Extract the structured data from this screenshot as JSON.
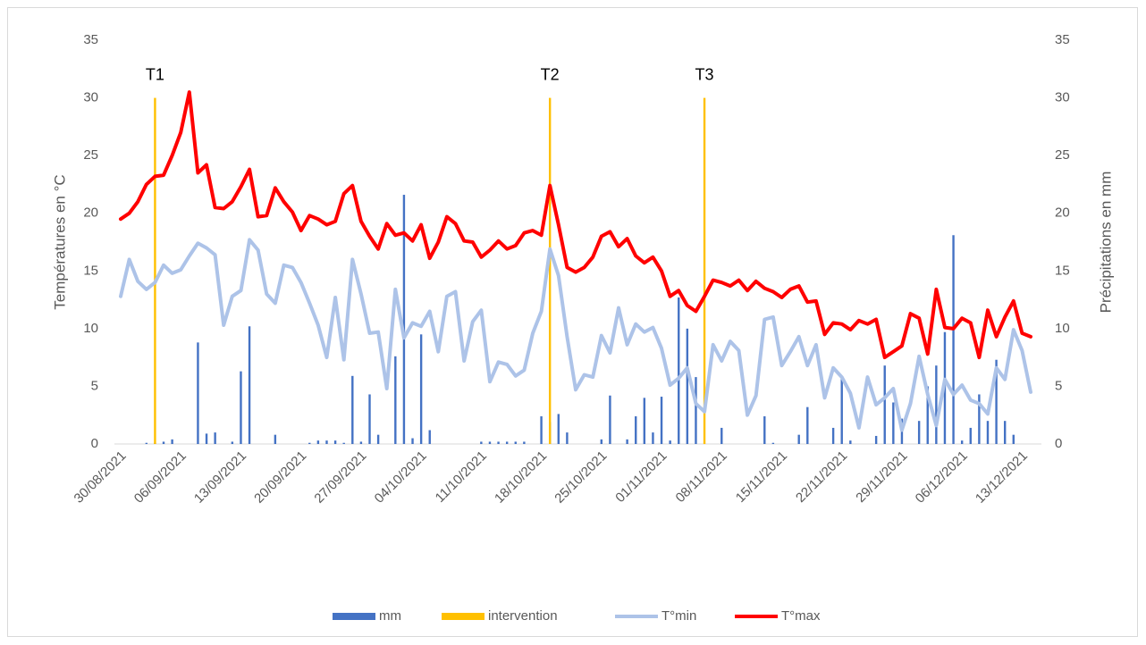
{
  "chart_data": {
    "type": "combo",
    "categories": [
      "30/08/2021",
      null,
      null,
      null,
      null,
      null,
      null,
      "06/09/2021",
      null,
      null,
      null,
      null,
      null,
      null,
      "13/09/2021",
      null,
      null,
      null,
      null,
      null,
      null,
      "20/09/2021",
      null,
      null,
      null,
      null,
      null,
      null,
      "27/09/2021",
      null,
      null,
      null,
      null,
      null,
      null,
      "04/10/2021",
      null,
      null,
      null,
      null,
      null,
      null,
      "11/10/2021",
      null,
      null,
      null,
      null,
      null,
      null,
      "18/10/2021",
      null,
      null,
      null,
      null,
      null,
      null,
      "25/10/2021",
      null,
      null,
      null,
      null,
      null,
      null,
      "01/11/2021",
      null,
      null,
      null,
      null,
      null,
      null,
      "08/11/2021",
      null,
      null,
      null,
      null,
      null,
      null,
      "15/11/2021",
      null,
      null,
      null,
      null,
      null,
      null,
      "22/11/2021",
      null,
      null,
      null,
      null,
      null,
      null,
      "29/11/2021",
      null,
      null,
      null,
      null,
      null,
      null,
      "06/12/2021",
      null,
      null,
      null,
      null,
      null,
      null,
      "13/12/2021",
      null
    ],
    "ylabel": "Températures en °C",
    "y2label": "Précipitations en mm",
    "ylim": [
      0,
      35
    ],
    "yticks": [
      0,
      5,
      10,
      15,
      20,
      25,
      30,
      35
    ],
    "y2lim": [
      0,
      35
    ],
    "y2ticks": [
      0,
      5,
      10,
      15,
      20,
      25,
      30,
      35
    ],
    "grid": false,
    "legend": "bottom",
    "annotations": [
      "T1",
      "T2",
      "T3"
    ],
    "series": [
      {
        "name": "mm",
        "type": "bar",
        "axis": "y2",
        "color": "#4472c4",
        "values": [
          0,
          0,
          0,
          0.1,
          0.1,
          0.2,
          0.4,
          0,
          0,
          8.8,
          0.9,
          1,
          0,
          0.2,
          6.3,
          10.2,
          0,
          0,
          0.8,
          0,
          0,
          0,
          0.1,
          0.3,
          0.3,
          0.3,
          0.1,
          5.9,
          0.2,
          4.3,
          0.8,
          0,
          7.6,
          21.6,
          0.5,
          9.5,
          1.2,
          0,
          0,
          0,
          0,
          0,
          0.2,
          0.2,
          0.2,
          0.2,
          0.2,
          0.2,
          0,
          2.4,
          1.9,
          2.6,
          1,
          0,
          0,
          0,
          0.4,
          4.2,
          0,
          0.4,
          2.4,
          4,
          1,
          4.1,
          0.3,
          12.7,
          10,
          5.8,
          0,
          0,
          1.4,
          0,
          0,
          0,
          0,
          2.4,
          0.1,
          0,
          0,
          0.8,
          3.2,
          0,
          0,
          1.4,
          5.8,
          0.3,
          0,
          0,
          0.7,
          6.8,
          3.6,
          2.2,
          0,
          2,
          5,
          6.8,
          9.7,
          18.1,
          0.3,
          1.4,
          4.3,
          2,
          7.3,
          2,
          0.8,
          0,
          0
        ]
      },
      {
        "name": "intervention",
        "type": "bar",
        "color": "#ffc000",
        "values": [
          null,
          null,
          null,
          null,
          30,
          null,
          null,
          null,
          null,
          null,
          null,
          null,
          null,
          null,
          null,
          null,
          null,
          null,
          null,
          null,
          null,
          null,
          null,
          null,
          null,
          null,
          null,
          null,
          null,
          null,
          null,
          null,
          null,
          null,
          null,
          null,
          null,
          null,
          null,
          null,
          null,
          null,
          null,
          null,
          null,
          null,
          null,
          null,
          null,
          null,
          30,
          null,
          null,
          null,
          null,
          null,
          null,
          null,
          null,
          null,
          null,
          null,
          null,
          null,
          null,
          null,
          null,
          null,
          30,
          null,
          null,
          null,
          null,
          null,
          null,
          null,
          null,
          null,
          null,
          null,
          null,
          null,
          null,
          null,
          null,
          null,
          null,
          null,
          null,
          null,
          null,
          null,
          null,
          null,
          null,
          null,
          null,
          null,
          null,
          null,
          null,
          null,
          null,
          null,
          null,
          null,
          null
        ]
      },
      {
        "name": "T°min",
        "type": "line",
        "color": "#adc3e8",
        "values": [
          12.8,
          16,
          14.1,
          13.4,
          14,
          15.5,
          14.8,
          15.1,
          16.3,
          17.4,
          17,
          16.4,
          10.3,
          12.8,
          13.3,
          17.7,
          16.8,
          13,
          12.2,
          15.5,
          15.3,
          14,
          12.2,
          10.3,
          7.5,
          12.7,
          7.3,
          16,
          13,
          9.6,
          9.7,
          4.8,
          13.4,
          9.2,
          10.5,
          10.2,
          11.5,
          8,
          12.8,
          13.2,
          7.2,
          10.6,
          11.6,
          5.4,
          7.1,
          6.9,
          5.9,
          6.4,
          9.6,
          11.5,
          16.9,
          14.6,
          9.3,
          4.7,
          6,
          5.8,
          9.4,
          7.9,
          11.8,
          8.6,
          10.4,
          9.7,
          10.1,
          8.3,
          5.1,
          5.7,
          6.6,
          3.5,
          2.8,
          8.6,
          7.2,
          8.9,
          8.1,
          2.5,
          4.2,
          10.8,
          11,
          6.8,
          8,
          9.3,
          6.8,
          8.6,
          4,
          6.6,
          5.8,
          4.4,
          1.4,
          5.8,
          3.4,
          4,
          4.8,
          1.2,
          3.5,
          7.6,
          4.3,
          1.6,
          5.6,
          4.3,
          5.1,
          3.8,
          3.5,
          2.6,
          6.6,
          5.6,
          9.9,
          8.1,
          4.5
        ]
      },
      {
        "name": "T°max",
        "type": "line",
        "color": "#ff0000",
        "values": [
          19.5,
          20,
          21,
          22.5,
          23.2,
          23.3,
          25,
          27,
          30.5,
          23.5,
          24.2,
          20.5,
          20.4,
          21,
          22.3,
          23.8,
          19.7,
          19.8,
          22.2,
          21,
          20.1,
          18.5,
          19.8,
          19.5,
          19,
          19.3,
          21.7,
          22.4,
          19.3,
          18,
          16.9,
          19.1,
          18.1,
          18.3,
          17.6,
          19,
          16.1,
          17.5,
          19.7,
          19.1,
          17.6,
          17.5,
          16.2,
          16.8,
          17.6,
          16.9,
          17.2,
          18.3,
          18.5,
          18.1,
          22.4,
          19,
          15.3,
          14.9,
          15.3,
          16.2,
          18,
          18.4,
          17.1,
          17.8,
          16.3,
          15.7,
          16.2,
          15,
          12.8,
          13.3,
          12,
          11.5,
          12.8,
          14.2,
          14,
          13.7,
          14.2,
          13.3,
          14.1,
          13.5,
          13.2,
          12.7,
          13.4,
          13.7,
          12.3,
          12.4,
          9.5,
          10.5,
          10.4,
          9.9,
          10.7,
          10.4,
          10.8,
          7.5,
          8,
          8.5,
          11.3,
          10.9,
          7.8,
          13.4,
          10.1,
          10,
          10.9,
          10.5,
          7.5,
          11.6,
          9.3,
          11,
          12.4,
          9.6,
          9.3
        ]
      }
    ]
  }
}
